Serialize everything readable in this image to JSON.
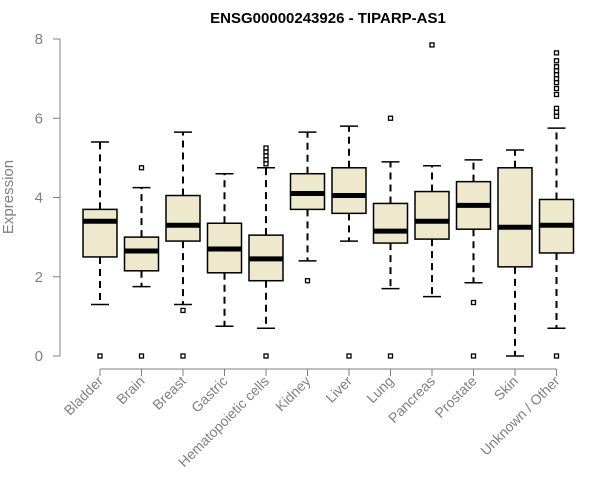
{
  "chart_data": {
    "type": "boxplot",
    "title": "ENSG00000243926 - TIPARP-AS1",
    "xlabel": "",
    "ylabel": "Expression",
    "ylim": [
      0,
      8
    ],
    "yticks": [
      0,
      2,
      4,
      6,
      8
    ],
    "box_fill": "#EEE8CC",
    "categories": [
      "Bladder",
      "Brain",
      "Breast",
      "Gastric",
      "Hematopoietic cells",
      "Kidney",
      "Liver",
      "Lung",
      "Pancreas",
      "Prostate",
      "Skin",
      "Unknown / Other"
    ],
    "boxes": [
      {
        "name": "Bladder",
        "whisker_low": 1.3,
        "q1": 2.5,
        "median": 3.4,
        "q3": 3.7,
        "whisker_high": 5.4,
        "outliers": [
          0
        ]
      },
      {
        "name": "Brain",
        "whisker_low": 1.75,
        "q1": 2.15,
        "median": 2.65,
        "q3": 3.0,
        "whisker_high": 4.25,
        "outliers": [
          0,
          4.75
        ]
      },
      {
        "name": "Breast",
        "whisker_low": 1.3,
        "q1": 2.9,
        "median": 3.3,
        "q3": 4.05,
        "whisker_high": 5.65,
        "outliers": [
          0,
          1.15
        ]
      },
      {
        "name": "Gastric",
        "whisker_low": 0.75,
        "q1": 2.1,
        "median": 2.7,
        "q3": 3.35,
        "whisker_high": 4.6,
        "outliers": []
      },
      {
        "name": "Hematopoietic cells",
        "whisker_low": 0.7,
        "q1": 1.9,
        "median": 2.45,
        "q3": 3.05,
        "whisker_high": 4.75,
        "outliers": [
          0,
          4.85,
          4.95,
          5.05,
          5.15,
          5.25
        ]
      },
      {
        "name": "Kidney",
        "whisker_low": 2.4,
        "q1": 3.7,
        "median": 4.1,
        "q3": 4.6,
        "whisker_high": 5.65,
        "outliers": [
          1.9
        ]
      },
      {
        "name": "Liver",
        "whisker_low": 2.9,
        "q1": 3.6,
        "median": 4.05,
        "q3": 4.75,
        "whisker_high": 5.8,
        "outliers": [
          0
        ]
      },
      {
        "name": "Lung",
        "whisker_low": 1.7,
        "q1": 2.85,
        "median": 3.15,
        "q3": 3.85,
        "whisker_high": 4.9,
        "outliers": [
          0,
          6.0
        ]
      },
      {
        "name": "Pancreas",
        "whisker_low": 1.5,
        "q1": 2.95,
        "median": 3.4,
        "q3": 4.15,
        "whisker_high": 4.8,
        "outliers": [
          7.85
        ]
      },
      {
        "name": "Prostate",
        "whisker_low": 1.85,
        "q1": 3.2,
        "median": 3.8,
        "q3": 4.4,
        "whisker_high": 4.95,
        "outliers": [
          0,
          1.35
        ]
      },
      {
        "name": "Skin",
        "whisker_low": 0.0,
        "q1": 2.25,
        "median": 3.25,
        "q3": 4.75,
        "whisker_high": 5.2,
        "outliers": []
      },
      {
        "name": "Unknown / Other",
        "whisker_low": 0.7,
        "q1": 2.6,
        "median": 3.3,
        "q3": 3.95,
        "whisker_high": 5.75,
        "outliers": [
          0,
          6.05,
          6.15,
          6.25,
          6.6,
          6.75,
          6.9,
          7.0,
          7.1,
          7.2,
          7.3,
          7.45,
          7.65
        ]
      }
    ]
  }
}
